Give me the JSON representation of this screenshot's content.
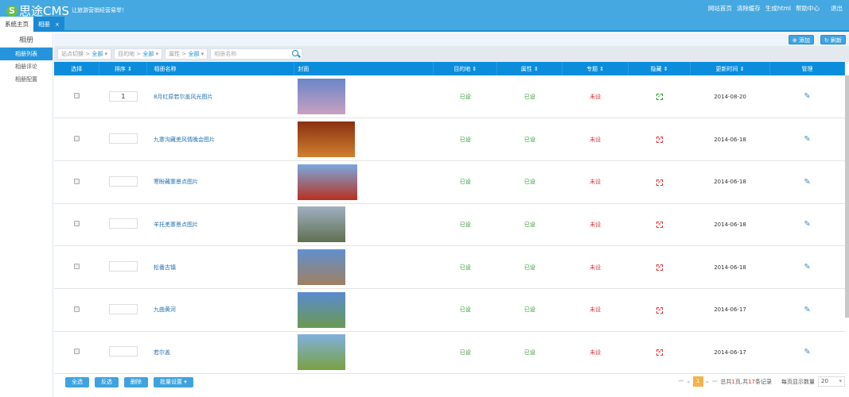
{
  "header": {
    "logo_letter": "S",
    "logo": "思途CMS",
    "slogan": "让旅游营销经营易举！",
    "links": [
      "网站首页",
      "清除缓存",
      "生成html",
      "帮助中心",
      "退出"
    ]
  },
  "tabs": [
    {
      "label": "系统主页"
    },
    {
      "label": "相册",
      "close": "×"
    }
  ],
  "sidebar": {
    "title": "相册",
    "items": [
      "相册列表",
      "相册评论",
      "相册配置"
    ],
    "active": 0
  },
  "toolbar": {
    "add": "添加",
    "refresh": "刷新"
  },
  "filters": [
    {
      "label": "站点切换 > ",
      "value": "全部"
    },
    {
      "label": "目的地 > ",
      "value": "全部"
    },
    {
      "label": "属性 > ",
      "value": "全部"
    }
  ],
  "search": {
    "placeholder": "相册名称"
  },
  "columns": [
    "选择",
    "排序 ⇕",
    "相册名称",
    "封面",
    "目的地 ⇕",
    "属性 ⇕",
    "专题 ⇕",
    "隐藏 ⇕",
    "更新时间 ⇕",
    "管理"
  ],
  "rows": [
    {
      "sort": "1",
      "name": "8月红原若尔盖风光图片",
      "dest": "已设",
      "attr": "已设",
      "topic": "未设",
      "hidden": true,
      "date": "2014-08-20",
      "colors": [
        "#6a86c8",
        "#c9a0c0"
      ]
    },
    {
      "sort": "",
      "name": "九寨沟藏羌风情晚会图片",
      "dest": "已设",
      "attr": "已设",
      "topic": "未设",
      "hidden": false,
      "date": "2014-06-18",
      "colors": [
        "#8a3010",
        "#d08030"
      ]
    },
    {
      "sort": "",
      "name": "寒盼藏寨景点图片",
      "dest": "已设",
      "attr": "已设",
      "topic": "未设",
      "hidden": false,
      "date": "2014-06-18",
      "colors": [
        "#7aa8e0",
        "#b83020"
      ]
    },
    {
      "sort": "",
      "name": "羊托羌寨景点图片",
      "dest": "已设",
      "attr": "已设",
      "topic": "未设",
      "hidden": false,
      "date": "2014-06-18",
      "colors": [
        "#a0b0c0",
        "#607050"
      ]
    },
    {
      "sort": "",
      "name": "松番古镇",
      "dest": "已设",
      "attr": "已设",
      "topic": "未设",
      "hidden": false,
      "date": "2014-06-18",
      "colors": [
        "#6090d0",
        "#a08060"
      ]
    },
    {
      "sort": "",
      "name": "九曲黄河",
      "dest": "已设",
      "attr": "已设",
      "topic": "未设",
      "hidden": false,
      "date": "2014-06-17",
      "colors": [
        "#5a8ad0",
        "#6a9a50"
      ]
    },
    {
      "sort": "",
      "name": "若尔盖",
      "dest": "已设",
      "attr": "已设",
      "topic": "未设",
      "hidden": false,
      "date": "2014-06-17",
      "colors": [
        "#80b0e0",
        "#7aa040"
      ]
    }
  ],
  "footer": {
    "buttons": [
      "全选",
      "反选",
      "删除",
      "批量设置 ▾"
    ]
  },
  "pager": {
    "current": "1",
    "total_pre": "总共",
    "pages": "1",
    "mid": "页,共",
    "records": "17",
    "post": "条记录",
    "per_page_label": "每页显示数量",
    "per_page": "20"
  }
}
